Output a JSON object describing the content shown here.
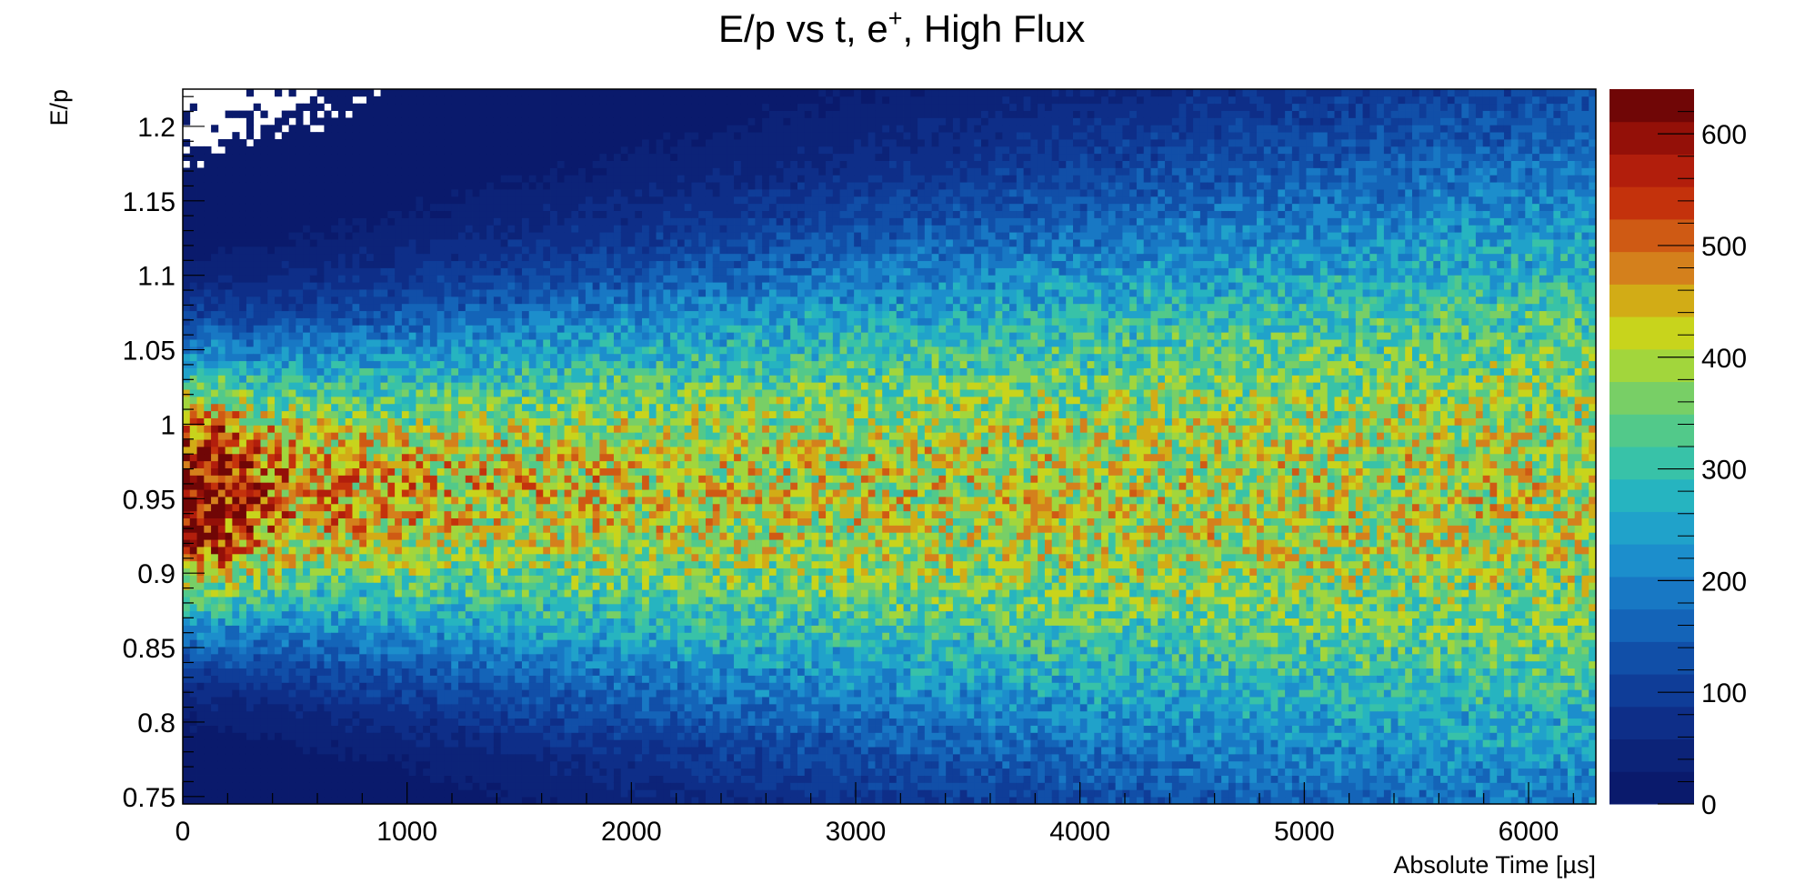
{
  "chart_data": {
    "type": "heatmap",
    "title_main": "E/p vs t, e",
    "title_sup": "+",
    "title_rest": ", High Flux",
    "xlabel": "Absolute Time [µs]",
    "ylabel": "E/p",
    "xlim": [
      0,
      6300
    ],
    "ylim": [
      0.745,
      1.225
    ],
    "x_ticks": [
      0,
      1000,
      2000,
      3000,
      4000,
      5000,
      6000
    ],
    "x_tick_labels": [
      "0",
      "1000",
      "2000",
      "3000",
      "4000",
      "5000",
      "6000"
    ],
    "y_ticks": [
      0.75,
      0.8,
      0.85,
      0.9,
      0.95,
      1.0,
      1.05,
      1.1,
      1.15,
      1.2
    ],
    "y_tick_labels": [
      "0.75",
      "0.8",
      "0.85",
      "0.9",
      "0.95",
      "1",
      "1.05",
      "1.1",
      "1.15",
      "1.2"
    ],
    "z_range": [
      0,
      640
    ],
    "z_ticks": [
      0,
      100,
      200,
      300,
      400,
      500,
      600
    ],
    "z_tick_labels": [
      "0",
      "100",
      "200",
      "300",
      "400",
      "500",
      "600"
    ],
    "peak": {
      "t": 150,
      "ep": 0.955,
      "count": 640
    },
    "bins": {
      "nx": 200,
      "ny": 100
    },
    "colors": [
      "#0a1a6c",
      "#0c2378",
      "#0e2e88",
      "#0f3d98",
      "#114fa8",
      "#1464b8",
      "#1878c4",
      "#1c8ecc",
      "#20a2ca",
      "#26b4c0",
      "#38c2a8",
      "#52c98a",
      "#78cf66",
      "#a2d63c",
      "#c8d41c",
      "#d2ac16",
      "#d4801c",
      "#cf5a14",
      "#c4320c",
      "#b21e0c",
      "#941008",
      "#700606"
    ],
    "grid": false,
    "legend": "color scale right"
  }
}
